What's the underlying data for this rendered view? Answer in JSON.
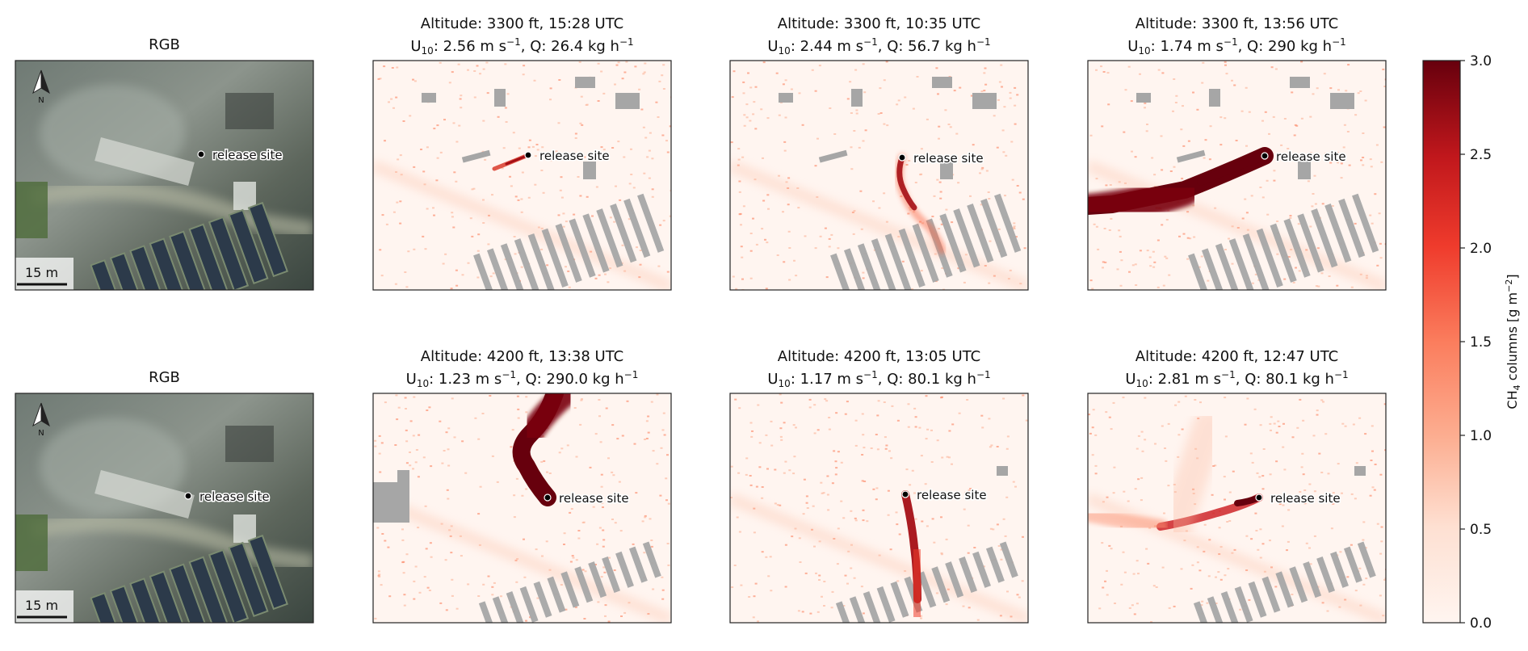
{
  "chart_data": {
    "type": "heatmap",
    "layout": "2 rows x 4 columns of image panels with shared colorbar",
    "colormap": "Reds",
    "colorbar": {
      "label": "CH4 columns [g m-2]",
      "label_main": "CH",
      "label_sub": "4",
      "label_rest": " columns [g m",
      "label_sup": "−2",
      "label_end": "]",
      "range": [
        0.0,
        3.0
      ],
      "ticks": [
        "0.0",
        "0.5",
        "1.0",
        "1.5",
        "2.0",
        "2.5",
        "3.0"
      ],
      "placement": "right"
    },
    "marker_label": "release site",
    "scale_bar": "15 m",
    "north_label": "N",
    "nodata_color": "#a6a6a6",
    "rows": [
      {
        "rgb_title": "RGB",
        "panels": [
          {
            "line1": "Altitude: 3300 ft, 15:28 UTC",
            "u10": "2.56",
            "q": "26.4"
          },
          {
            "line1": "Altitude: 3300 ft, 10:35 UTC",
            "u10": "2.44",
            "q": "56.7"
          },
          {
            "line1": "Altitude: 3300 ft, 13:56 UTC",
            "u10": "1.74",
            "q": "290"
          }
        ]
      },
      {
        "rgb_title": "RGB",
        "panels": [
          {
            "line1": "Altitude: 4200 ft, 13:38 UTC",
            "u10": "1.23",
            "q": "290.0"
          },
          {
            "line1": "Altitude: 4200 ft, 13:05 UTC",
            "u10": "1.17",
            "q": "80.1"
          },
          {
            "line1": "Altitude: 4200 ft, 12:47 UTC",
            "u10": "2.81",
            "q": "80.1"
          }
        ]
      }
    ]
  }
}
